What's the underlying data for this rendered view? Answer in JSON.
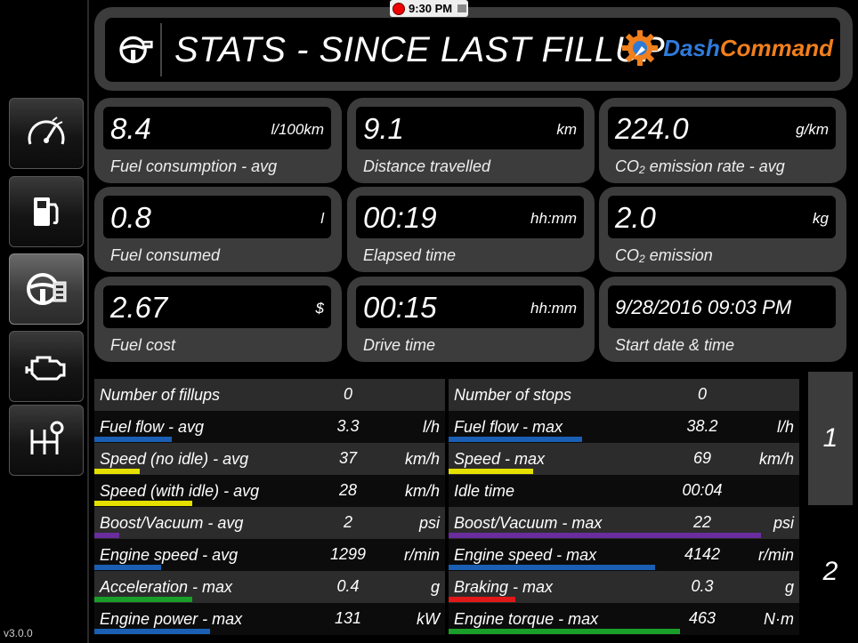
{
  "status": {
    "time": "9:30 PM"
  },
  "header": {
    "title": "STATS - SINCE LAST FILLUP",
    "brand_part1": "Dash",
    "brand_part2": "Command"
  },
  "sidebar": {
    "items": [
      {
        "name": "gauges",
        "icon": "speedometer-icon"
      },
      {
        "name": "fuel",
        "icon": "fuel-pump-icon"
      },
      {
        "name": "trip-stats",
        "icon": "steering-wheel-icon",
        "active": true
      },
      {
        "name": "diagnostics",
        "icon": "check-engine-icon"
      },
      {
        "name": "performance",
        "icon": "gear-shifter-icon"
      }
    ],
    "version": "v3.0.0"
  },
  "tiles": [
    {
      "value": "8.4",
      "unit": "l/100km",
      "label": "Fuel consumption - avg"
    },
    {
      "value": "9.1",
      "unit": "km",
      "label": "Distance travelled"
    },
    {
      "value": "224.0",
      "unit": "g/km",
      "label_pre": "CO",
      "label_sub": "2",
      "label_post": " emission rate - avg"
    },
    {
      "value": "0.8",
      "unit": "l",
      "label": "Fuel consumed"
    },
    {
      "value": "00:19",
      "unit": "hh:mm",
      "label": "Elapsed time"
    },
    {
      "value": "2.0",
      "unit": "kg",
      "label_pre": "CO",
      "label_sub": "2",
      "label_post": " emission"
    },
    {
      "value": "2.67",
      "unit": "$",
      "label": "Fuel cost"
    },
    {
      "value": "00:15",
      "unit": "hh:mm",
      "label": "Drive time"
    },
    {
      "value": "9/28/2016 09:03 PM",
      "unit": "",
      "label": "Start date & time"
    }
  ],
  "left_rows": [
    {
      "label": "Number of fillups",
      "value": "0",
      "unit": "",
      "bar": 0,
      "color": ""
    },
    {
      "label": "Fuel flow - avg",
      "value": "3.3",
      "unit": "l/h",
      "bar": 0.22,
      "color": "#1a5fb4"
    },
    {
      "label": "Speed (no idle) - avg",
      "value": "37",
      "unit": "km/h",
      "bar": 0.13,
      "color": "#e5e000"
    },
    {
      "label": "Speed (with idle) - avg",
      "value": "28",
      "unit": "km/h",
      "bar": 0.28,
      "color": "#e5e000"
    },
    {
      "label": "Boost/Vacuum - avg",
      "value": "2",
      "unit": "psi",
      "bar": 0.07,
      "color": "#6a2d9e"
    },
    {
      "label": "Engine speed - avg",
      "value": "1299",
      "unit": "r/min",
      "bar": 0.19,
      "color": "#1a5fb4"
    },
    {
      "label": "Acceleration - max",
      "value": "0.4",
      "unit": "g",
      "bar": 0.28,
      "color": "#1a9e2a"
    },
    {
      "label": "Engine power - max",
      "value": "131",
      "unit": "kW",
      "bar": 0.33,
      "color": "#1a5fb4"
    }
  ],
  "right_rows": [
    {
      "label": "Number of stops",
      "value": "0",
      "unit": "",
      "bar": 0,
      "color": ""
    },
    {
      "label": "Fuel flow - max",
      "value": "38.2",
      "unit": "l/h",
      "bar": 0.38,
      "color": "#1a5fb4"
    },
    {
      "label": "Speed - max",
      "value": "69",
      "unit": "km/h",
      "bar": 0.24,
      "color": "#e5e000"
    },
    {
      "label": "Idle time",
      "value": "00:04",
      "unit": "",
      "bar": 0,
      "color": ""
    },
    {
      "label": "Boost/Vacuum - max",
      "value": "22",
      "unit": "psi",
      "bar": 0.89,
      "color": "#6a2d9e"
    },
    {
      "label": "Engine speed - max",
      "value": "4142",
      "unit": "r/min",
      "bar": 0.59,
      "color": "#1a5fb4"
    },
    {
      "label": "Braking - max",
      "value": "0.3",
      "unit": "g",
      "bar": 0.19,
      "color": "#e01818"
    },
    {
      "label": "Engine torque - max",
      "value": "463",
      "unit": "N·m",
      "bar": 0.66,
      "color": "#1a9e2a"
    }
  ],
  "pages": [
    "1",
    "2"
  ]
}
